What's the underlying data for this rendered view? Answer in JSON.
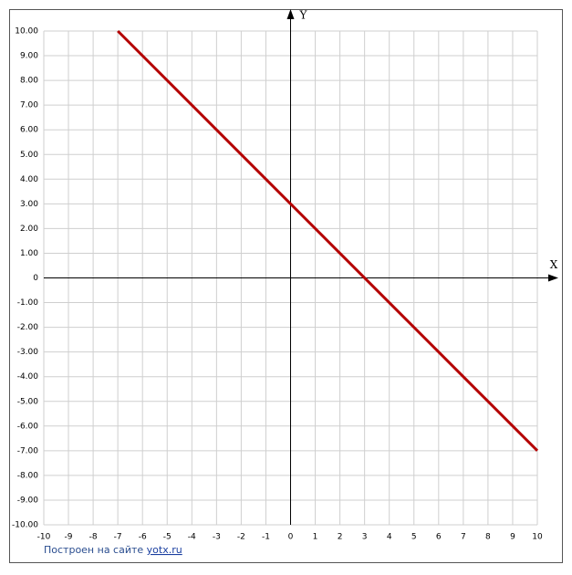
{
  "chart_data": {
    "type": "line",
    "xlabel": "X",
    "ylabel": "Y",
    "x": [
      -7,
      10
    ],
    "values": [
      10,
      -7
    ],
    "color": "#b40000",
    "xlim": [
      -10,
      10
    ],
    "xticks": [
      -10,
      -9,
      -8,
      -7,
      -6,
      -5,
      -4,
      -3,
      -2,
      -1,
      0,
      1,
      2,
      3,
      4,
      5,
      6,
      7,
      8,
      9,
      10
    ],
    "ylim": [
      -10,
      10
    ],
    "yticks": [
      {
        "value": 10,
        "label": "10.00"
      },
      {
        "value": 9,
        "label": "9.00"
      },
      {
        "value": 8,
        "label": "8.00"
      },
      {
        "value": 7,
        "label": "7.00"
      },
      {
        "value": 6,
        "label": "6.00"
      },
      {
        "value": 5,
        "label": "5.00"
      },
      {
        "value": 4,
        "label": "4.00"
      },
      {
        "value": 3,
        "label": "3.00"
      },
      {
        "value": 2,
        "label": "2.00"
      },
      {
        "value": 1,
        "label": "1.00"
      },
      0,
      {
        "value": -1,
        "label": "-1.00"
      },
      {
        "value": -2,
        "label": "-2.00"
      },
      {
        "value": -3,
        "label": "-3.00"
      },
      {
        "value": -4,
        "label": "-4.00"
      },
      {
        "value": -5,
        "label": "-5.00"
      },
      {
        "value": -6,
        "label": "-6.00"
      },
      {
        "value": -7,
        "label": "-7.00"
      },
      {
        "value": -8,
        "label": "-8.00"
      },
      {
        "value": -9,
        "label": "-9.00"
      },
      {
        "value": -10,
        "label": "-10.00"
      }
    ],
    "grid": true
  },
  "footer": {
    "text": "Построен на сайте",
    "link": "yotx.ru"
  }
}
